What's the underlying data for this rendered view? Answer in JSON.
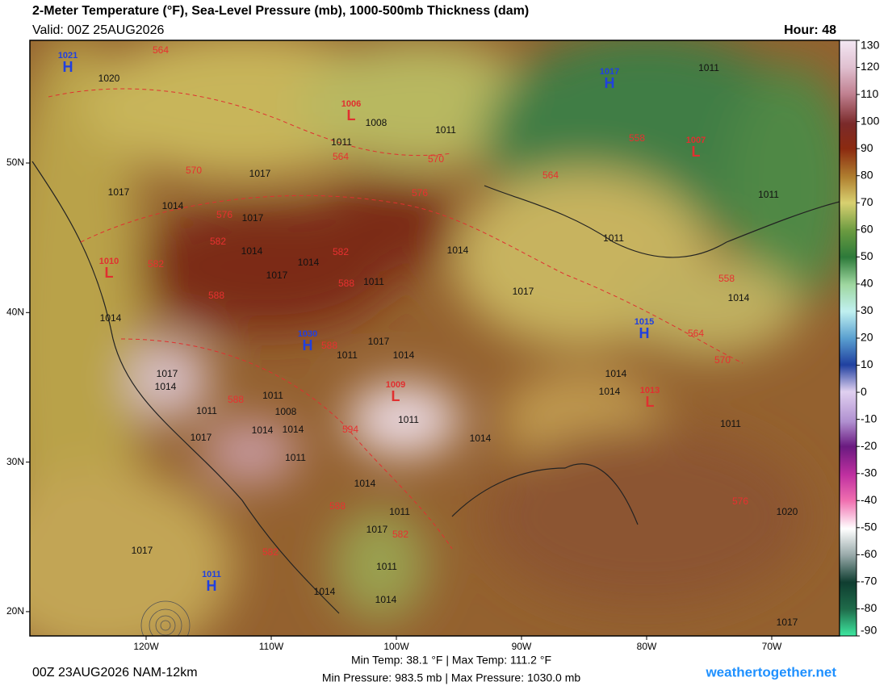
{
  "header": {
    "title": "2-Meter Temperature (°F), Sea-Level Pressure (mb), 1000-500mb Thickness (dam)",
    "valid": "Valid: 00Z 25AUG2026",
    "hour": "Hour: 48"
  },
  "map": {
    "lat_ticks": [
      {
        "value": 50,
        "label": "50N"
      },
      {
        "value": 40,
        "label": "40N"
      },
      {
        "value": 30,
        "label": "30N"
      },
      {
        "value": 20,
        "label": "20N"
      }
    ],
    "lon_ticks": [
      {
        "value": 120,
        "label": "120W"
      },
      {
        "value": 110,
        "label": "110W"
      },
      {
        "value": 100,
        "label": "100W"
      },
      {
        "value": 90,
        "label": "90W"
      },
      {
        "value": 80,
        "label": "80W"
      },
      {
        "value": 70,
        "label": "70W"
      }
    ],
    "centers": [
      {
        "letter": "H",
        "value": "1021"
      },
      {
        "letter": "L",
        "value": "1006"
      },
      {
        "letter": "H",
        "value": "1017"
      },
      {
        "letter": "L",
        "value": "1007"
      },
      {
        "letter": "L",
        "value": "1010"
      },
      {
        "letter": "H",
        "value": "1030"
      },
      {
        "letter": "L",
        "value": "1009"
      },
      {
        "letter": "H",
        "value": "1015"
      },
      {
        "letter": "L",
        "value": "1013"
      },
      {
        "letter": "H",
        "value": "1011"
      }
    ],
    "isobar_labels": [
      "1020",
      "1008",
      "1011",
      "1011",
      "1017",
      "1017",
      "1014",
      "1017",
      "1011",
      "1011",
      "1014",
      "1017",
      "1014",
      "1011",
      "1014",
      "1017",
      "1014",
      "1014",
      "1011",
      "1011",
      "1017",
      "1014",
      "1017",
      "1014",
      "1014",
      "1014",
      "1011",
      "1008",
      "1011",
      "1011",
      "1014",
      "1014",
      "1017",
      "1014",
      "1011",
      "1011",
      "1014",
      "1011",
      "1017",
      "1017",
      "1011",
      "1014",
      "1014",
      "1020",
      "1017"
    ],
    "thickness_labels": [
      "564",
      "564",
      "570",
      "570",
      "576",
      "576",
      "564",
      "558",
      "582",
      "582",
      "582",
      "588",
      "558",
      "588",
      "564",
      "570",
      "588",
      "588",
      "594",
      "588",
      "582",
      "576",
      "582"
    ],
    "colorbar": {
      "range": [
        -90,
        130
      ],
      "ticks": [
        130,
        120,
        110,
        100,
        90,
        80,
        70,
        60,
        50,
        40,
        30,
        20,
        10,
        0,
        -10,
        -20,
        -30,
        -40,
        -50,
        -60,
        -70,
        -80,
        -90
      ]
    }
  },
  "footer": {
    "run": "00Z 23AUG2026 NAM-12km",
    "temps": "Min Temp:  38.1 °F | Max Temp: 111.2 °F",
    "pressures": "Min Pressure: 983.5 mb | Max Pressure: 1030.0 mb",
    "site": "weathertogether.net"
  }
}
